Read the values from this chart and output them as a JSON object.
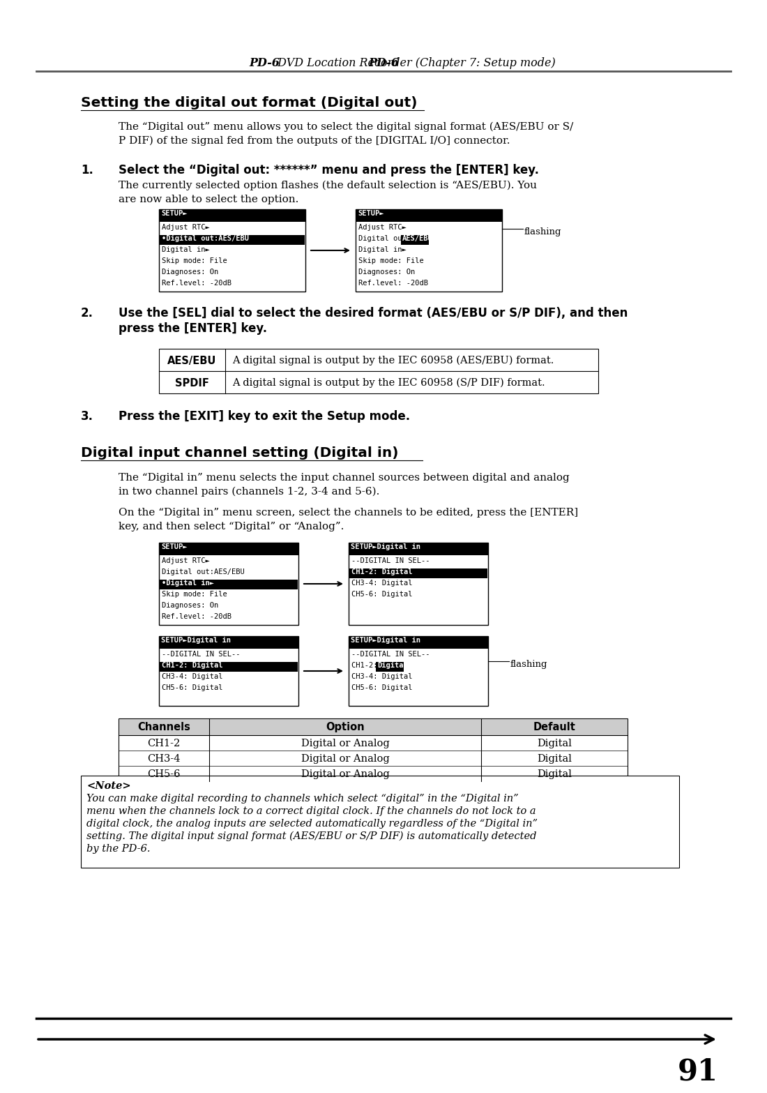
{
  "page_title_bold": "PD-6",
  "page_title_rest": " DVD Location Recorder (Chapter 7: Setup mode)",
  "section1_title": "Setting the digital out format (Digital out)",
  "section1_intro_line1": "The “Digital out” menu allows you to select the digital signal format (AES/EBU or S/",
  "section1_intro_line2": "P DIF) of the signal fed from the outputs of the [DIGITAL I/O] connector.",
  "step1_label": "1.",
  "step1_text": "Select the “Digital out: ******” menu and press the [ENTER] key.",
  "step1_sub_line1": "The currently selected option flashes (the default selection is “AES/EBU). You",
  "step1_sub_line2": "are now able to select the option.",
  "step2_label": "2.",
  "step2_text_line1": "Use the [SEL] dial to select the desired format (AES/EBU or S/P DIF), and then",
  "step2_text_line2": "press the [ENTER] key.",
  "step3_label": "3.",
  "step3_text": "Press the [EXIT] key to exit the Setup mode.",
  "aes_ebu_label": "AES/EBU",
  "aes_ebu_desc": "A digital signal is output by the IEC 60958 (AES/EBU) format.",
  "spdif_label": "SPDIF",
  "spdif_desc": "A digital signal is output by the IEC 60958 (S/P DIF) format.",
  "section2_title": "Digital input channel setting (Digital in)",
  "section2_intro1_line1": "The “Digital in” menu selects the input channel sources between digital and analog",
  "section2_intro1_line2": "in two channel pairs (channels 1-2, 3-4 and 5-6).",
  "section2_intro2_line1": "On the “Digital in” menu screen, select the channels to be edited, press the [ENTER]",
  "section2_intro2_line2": "key, and then select “Digital” or “Analog”.",
  "channels_header": [
    "Channels",
    "Option",
    "Default"
  ],
  "channels_data": [
    [
      "CH1-2",
      "Digital or Analog",
      "Digital"
    ],
    [
      "CH3-4",
      "Digital or Analog",
      "Digital"
    ],
    [
      "CH5-6",
      "Digital or Analog",
      "Digital"
    ]
  ],
  "note_title": "<Note>",
  "note_text_line1": "You can make digital recording to channels which select “digital” in the “Digital in”",
  "note_text_line2": "menu when the channels lock to a correct digital clock. If the channels do not lock to a",
  "note_text_line3": "digital clock, the analog inputs are selected automatically regardless of the “Digital in”",
  "note_text_line4": "setting. The digital input signal format (AES/EBU or S/P DIF) is automatically detected",
  "note_text_line5": "by the PD-6.",
  "page_number": "91",
  "bg_color": "#ffffff"
}
